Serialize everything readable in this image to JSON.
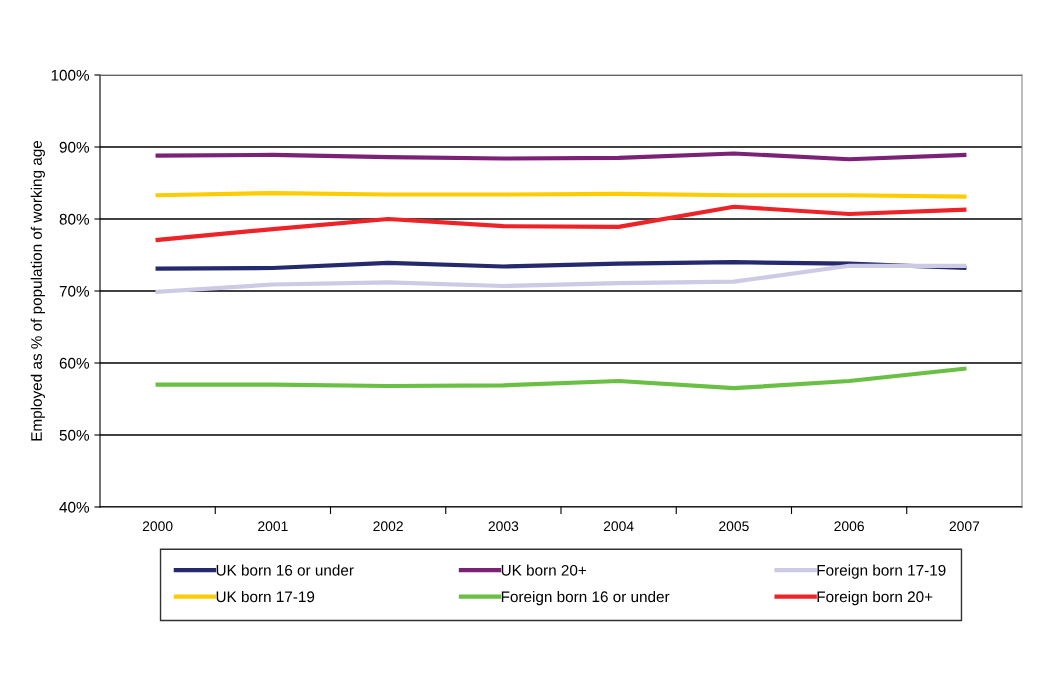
{
  "chart_data": {
    "type": "line",
    "ylabel": "Employed as % of population of working age",
    "categories": [
      "2000",
      "2001",
      "2002",
      "2003",
      "2004",
      "2005",
      "2006",
      "2007"
    ],
    "series": [
      {
        "name": "UK born 16 or under",
        "color": "#25296e",
        "values": [
          73.1,
          73.2,
          73.9,
          73.4,
          73.8,
          74.0,
          73.8,
          73.2
        ]
      },
      {
        "name": "UK born 17-19",
        "color": "#ffcc00",
        "values": [
          83.3,
          83.6,
          83.4,
          83.4,
          83.5,
          83.3,
          83.3,
          83.1
        ]
      },
      {
        "name": "UK born 20+",
        "color": "#7b2277",
        "values": [
          88.8,
          88.9,
          88.6,
          88.4,
          88.5,
          89.1,
          88.3,
          88.9
        ]
      },
      {
        "name": "Foreign born 16 or under",
        "color": "#6abf45",
        "values": [
          57.0,
          57.0,
          56.8,
          56.9,
          57.5,
          56.5,
          57.5,
          59.2
        ]
      },
      {
        "name": "Foreign born 17-19",
        "color": "#cccae4",
        "values": [
          69.9,
          70.9,
          71.2,
          70.7,
          71.1,
          71.3,
          73.5,
          73.5
        ]
      },
      {
        "name": "Foreign born 20+",
        "color": "#ee2328",
        "values": [
          77.1,
          78.6,
          80.0,
          79.0,
          78.9,
          81.7,
          80.7,
          81.3
        ]
      }
    ],
    "ylim": [
      40,
      100
    ],
    "yticks": [
      {
        "value": 40,
        "label": "40%"
      },
      {
        "value": 50,
        "label": "50%"
      },
      {
        "value": 60,
        "label": "60%"
      },
      {
        "value": 70,
        "label": "70%"
      },
      {
        "value": 80,
        "label": "80%"
      },
      {
        "value": 90,
        "label": "90%"
      },
      {
        "value": 100,
        "label": "100%"
      }
    ],
    "grid": "y",
    "legend": "bottom",
    "marker": "none",
    "line_style": "solid"
  }
}
